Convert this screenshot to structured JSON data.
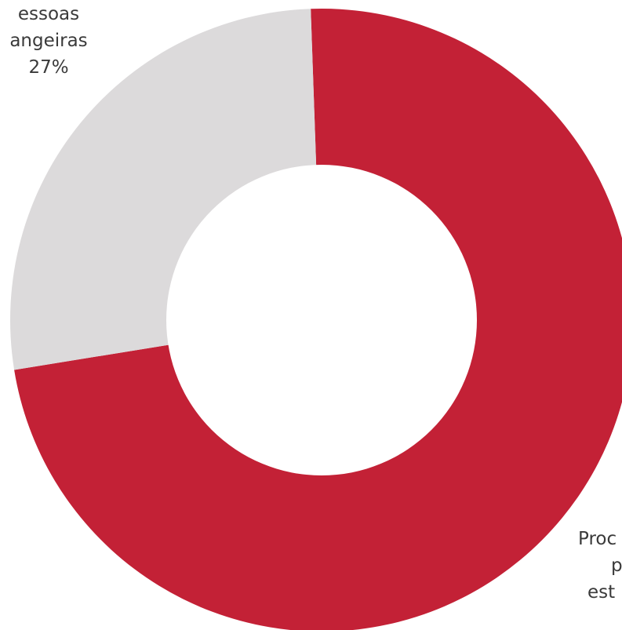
{
  "chart_data": {
    "type": "pie",
    "title": "",
    "categories": [
      "Processos de pessoas estrangeiras",
      "Processos de pessoas portuguesas"
    ],
    "values": [
      27,
      73
    ],
    "unit": "%",
    "colors": [
      "#dcdadb",
      "#c32136"
    ],
    "inner_hole": true,
    "labels": {
      "estrangeiras": {
        "line1": "essoas",
        "line2": "angeiras",
        "line3": "27%"
      },
      "portuguesas": {
        "line1": "Proc",
        "line2": "p",
        "line3": "est"
      }
    }
  }
}
